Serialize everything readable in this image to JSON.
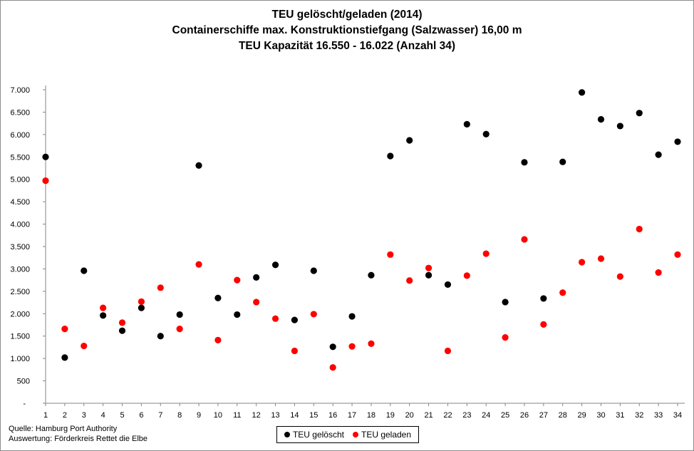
{
  "chart_data": {
    "type": "scatter",
    "title": [
      "TEU gelöscht/geladen (2014)",
      "Containerschiffe max. Konstruktionstiefgang (Salzwasser) 16,00 m",
      "TEU Kapazität 16.550 - 16.022 (Anzahl 34)"
    ],
    "x": [
      1,
      2,
      3,
      4,
      5,
      6,
      7,
      8,
      9,
      10,
      11,
      12,
      13,
      14,
      15,
      16,
      17,
      18,
      19,
      20,
      21,
      22,
      23,
      24,
      25,
      26,
      27,
      28,
      29,
      30,
      31,
      32,
      33,
      34
    ],
    "y_ticks": [
      "-",
      "500",
      "1.000",
      "1.500",
      "2.000",
      "2.500",
      "3.000",
      "3.500",
      "4.000",
      "4.500",
      "5.000",
      "5.500",
      "6.000",
      "6.500",
      "7.000"
    ],
    "ylim": [
      0,
      7000
    ],
    "series": [
      {
        "name": "TEU gelöscht",
        "color": "#000000",
        "values": [
          5500,
          1020,
          2960,
          1960,
          1620,
          2130,
          1500,
          1980,
          5310,
          2350,
          1980,
          2810,
          3090,
          1860,
          2960,
          1260,
          1940,
          2860,
          5520,
          5870,
          2860,
          2650,
          6230,
          6010,
          2260,
          5380,
          2340,
          5390,
          6940,
          6340,
          6190,
          6480,
          5550,
          5840
        ]
      },
      {
        "name": "TEU geladen",
        "color": "#ff0000",
        "values": [
          4970,
          1660,
          1280,
          2130,
          1800,
          2270,
          2580,
          1660,
          3100,
          1410,
          2750,
          2260,
          1890,
          1170,
          1990,
          800,
          1270,
          1330,
          3320,
          2740,
          3020,
          1170,
          2850,
          3340,
          1470,
          3660,
          1760,
          2470,
          3150,
          3230,
          2830,
          3890,
          2920,
          3320
        ]
      }
    ],
    "legend_position": "bottom-center",
    "grid": false
  },
  "source": {
    "line1": "Quelle: Hamburg Port Authority",
    "line2": "Auswertung: Förderkreis Rettet die Elbe"
  },
  "legend": {
    "item1": "TEU gelöscht",
    "item2": "TEU geladen"
  }
}
